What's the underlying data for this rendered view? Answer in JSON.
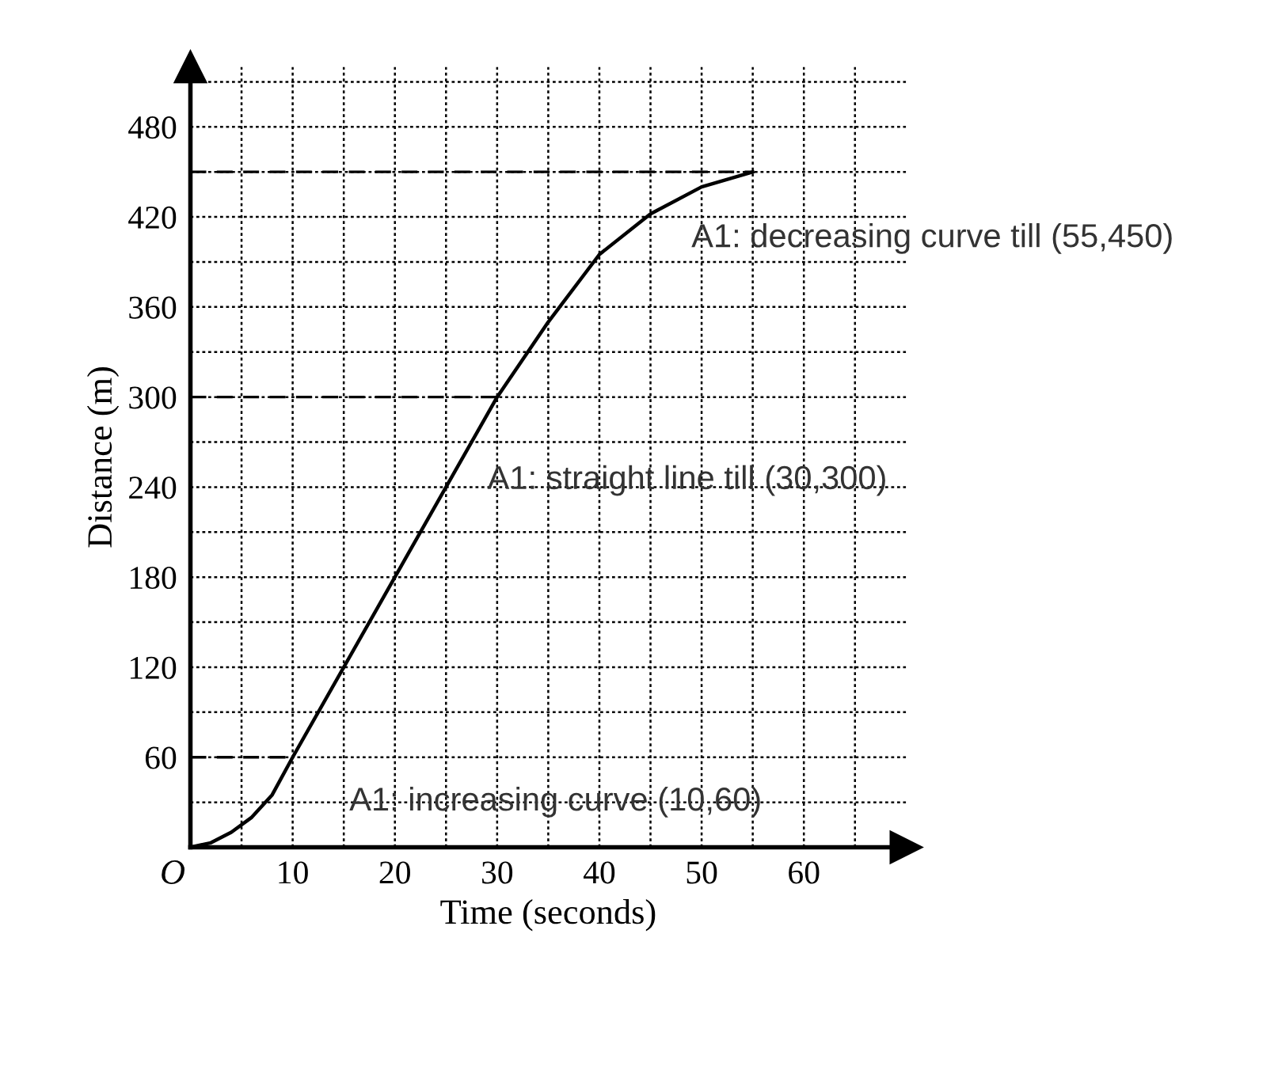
{
  "chart_data": {
    "type": "line",
    "xlabel": "Time (seconds)",
    "ylabel": "Distance (m)",
    "series": [
      {
        "color": "#000000",
        "x": [
          0,
          2,
          4,
          6,
          8,
          10,
          30,
          35,
          40,
          45,
          50,
          55
        ],
        "values": [
          0,
          3,
          10,
          20,
          35,
          60,
          300,
          350,
          395,
          422,
          440,
          450
        ]
      },
      {
        "color": "#000000",
        "line_style": "dashed",
        "x": [
          0,
          10
        ],
        "values": [
          60,
          60
        ]
      },
      {
        "color": "#000000",
        "line_style": "dashed",
        "x": [
          0,
          30
        ],
        "values": [
          300,
          300
        ]
      },
      {
        "color": "#000000",
        "line_style": "dashed",
        "x": [
          0,
          55
        ],
        "values": [
          450,
          450
        ]
      }
    ],
    "xlim": [
      0,
      70
    ],
    "ylim": [
      0,
      520
    ],
    "xticks": [
      {
        "value": 5,
        "label": null
      },
      10,
      {
        "value": 15,
        "label": null
      },
      20,
      {
        "value": 25,
        "label": null
      },
      30,
      {
        "value": 35,
        "label": null
      },
      40,
      {
        "value": 45,
        "label": null
      },
      50,
      {
        "value": 55,
        "label": null
      },
      60,
      {
        "value": 65,
        "label": null
      }
    ],
    "yticks": [
      {
        "value": 30,
        "label": null
      },
      60,
      {
        "value": 90,
        "label": null
      },
      120,
      {
        "value": 150,
        "label": null
      },
      180,
      {
        "value": 210,
        "label": null
      },
      240,
      {
        "value": 270,
        "label": null
      },
      300,
      {
        "value": 330,
        "label": null
      },
      360,
      {
        "value": 390,
        "label": null
      },
      420,
      {
        "value": 450,
        "label": null
      },
      480,
      {
        "value": 510,
        "label": null
      }
    ],
    "grid": true,
    "line_style": "solid",
    "marker": "none",
    "annotations": [
      "O",
      "A1: increasing curve (10,60)",
      "A1: straight line till (30,300)",
      "A1: decreasing curve till (55,450)"
    ]
  }
}
